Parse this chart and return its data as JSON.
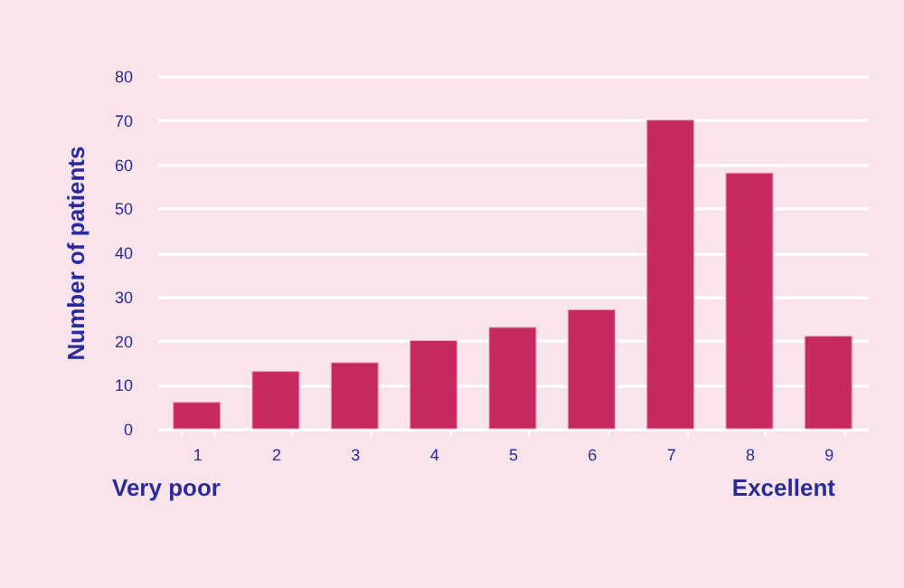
{
  "chart_data": {
    "type": "bar",
    "ylabel": "Number of patients",
    "categories": [
      "1",
      "2",
      "3",
      "4",
      "5",
      "6",
      "7",
      "8",
      "9"
    ],
    "values": [
      6,
      13,
      15,
      20,
      23,
      27,
      70,
      58,
      21
    ],
    "color": "#c62a5e",
    "ylim": [
      0,
      80
    ],
    "yticks": [
      0,
      10,
      20,
      30,
      40,
      50,
      60,
      70,
      80
    ],
    "grid": "y",
    "annotations": [
      "Very poor",
      "Excellent"
    ]
  }
}
